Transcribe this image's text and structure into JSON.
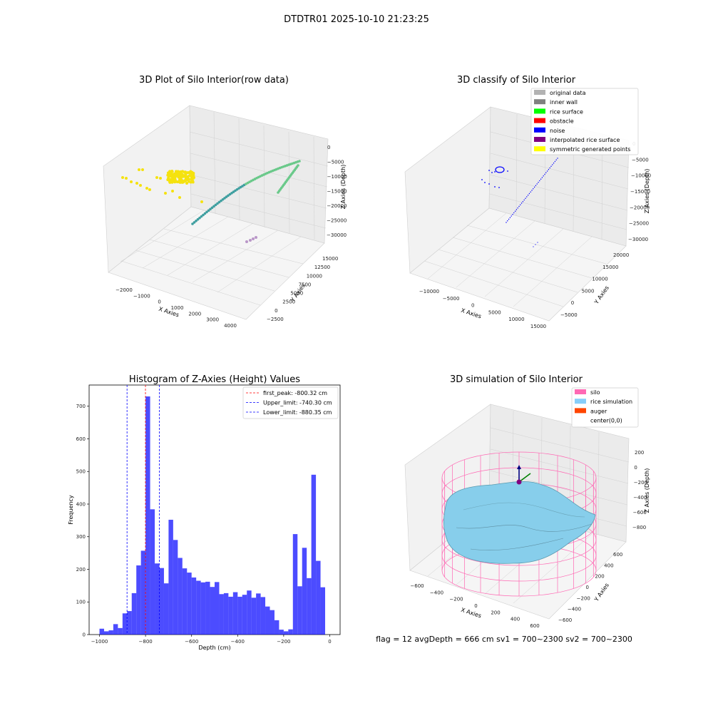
{
  "suptitle": "DTDTR01 2025-10-10 21:23:25",
  "panel1": {
    "title": "3D Plot of Silo Interior(row data)",
    "xlabel": "X Axies",
    "ylabel": "Y Axies",
    "zlabel": "Z Axies (Depth)",
    "xticks": [
      "−2000",
      "−1000",
      "0",
      "1000",
      "2000",
      "3000",
      "4000"
    ],
    "yticks": [
      "−2500",
      "0",
      "2500",
      "5000",
      "7500",
      "10000",
      "12500",
      "15000"
    ],
    "zticks": [
      "0",
      "−5000",
      "−10000",
      "−15000",
      "−20000",
      "−25000",
      "−30000"
    ],
    "colors": {
      "yellow": "#f5e20f",
      "green": "#6ac98a",
      "teal": "#3f9fa0",
      "purple": "#b996c8"
    }
  },
  "panel2": {
    "title": "3D classify of Silo Interior",
    "xlabel": "X Axies",
    "ylabel": "Y Axies",
    "zlabel": "Z Axies (Depth)",
    "xticks": [
      "−10000",
      "−5000",
      "0",
      "5000",
      "10000",
      "15000"
    ],
    "yticks": [
      "−5000",
      "0",
      "5000",
      "10000",
      "15000",
      "20000"
    ],
    "zticks": [
      "0",
      "−5000",
      "−10000",
      "−15000",
      "−20000",
      "−25000",
      "−30000"
    ],
    "legend": [
      {
        "label": "original data",
        "color": "#b3b3b3"
      },
      {
        "label": "inner wall",
        "color": "#808080"
      },
      {
        "label": "rice surface",
        "color": "#00ff00"
      },
      {
        "label": "obstacle",
        "color": "#ff0000"
      },
      {
        "label": "noise",
        "color": "#0000ff"
      },
      {
        "label": "interpolated rice surface",
        "color": "#800080"
      },
      {
        "label": "symmetric generated points",
        "color": "#ffff00"
      }
    ]
  },
  "panel3": {
    "title": "Histogram of Z-Axies (Height) Values",
    "legend": [
      {
        "label": "first_peak: -800.32 cm",
        "color": "#ff0000"
      },
      {
        "label": "Upper_limit: -740.30 cm",
        "color": "#0000ff"
      },
      {
        "label": "Lower_limit: -880.35 cm",
        "color": "#0000ff"
      }
    ]
  },
  "panel4": {
    "title": "3D simulation of Silo Interior",
    "xlabel": "X Axies",
    "ylabel": "Y Axies",
    "zlabel": "Z Axies (Depth)",
    "xticks": [
      "−600",
      "−400",
      "−200",
      "0",
      "200",
      "400",
      "600"
    ],
    "yticks": [
      "−600",
      "−400",
      "−200",
      "0",
      "200",
      "400",
      "600"
    ],
    "zticks": [
      "200",
      "0",
      "−200",
      "−400",
      "−600",
      "−800"
    ],
    "legend": [
      {
        "label": "silo",
        "color": "#ff69b4"
      },
      {
        "label": "rice simulation",
        "color": "#87cefa"
      },
      {
        "label": "auger",
        "color": "#ff4500"
      },
      {
        "label": "center(0,0)",
        "color": ""
      }
    ]
  },
  "footer": "flag = 12   avgDepth = 666 cm  sv1 = 700~2300  sv2 = 700~2300",
  "chart_data": {
    "type": "bar",
    "title": "Histogram of Z-Axies (Height) Values",
    "xlabel": "Depth (cm)",
    "ylabel": "Frequency",
    "xlim": [
      -1045,
      45
    ],
    "ylim": [
      0,
      765
    ],
    "xticks": [
      -1000,
      -800,
      -600,
      -400,
      -200,
      0
    ],
    "xtick_labels": [
      "−1000",
      "−800",
      "−600",
      "−400",
      "−200",
      "0"
    ],
    "yticks": [
      0,
      100,
      200,
      300,
      400,
      500,
      600,
      700
    ],
    "bar_color": "#0000ff",
    "bin_width": 20,
    "bins_start": [
      -1000,
      -980,
      -960,
      -940,
      -920,
      -900,
      -880,
      -860,
      -840,
      -820,
      -800,
      -780,
      -760,
      -740,
      -720,
      -700,
      -680,
      -660,
      -640,
      -620,
      -600,
      -580,
      -560,
      -540,
      -520,
      -500,
      -480,
      -460,
      -440,
      -420,
      -400,
      -380,
      -360,
      -340,
      -320,
      -300,
      -280,
      -260,
      -240,
      -220,
      -200,
      -180,
      -160,
      -140,
      -120,
      -100,
      -80,
      -60,
      -40,
      -20
    ],
    "values": [
      18,
      10,
      13,
      32,
      20,
      65,
      72,
      127,
      212,
      257,
      730,
      384,
      218,
      204,
      157,
      352,
      290,
      235,
      203,
      190,
      175,
      165,
      160,
      162,
      146,
      161,
      124,
      127,
      116,
      130,
      116,
      122,
      135,
      113,
      126,
      115,
      86,
      75,
      44,
      15,
      10,
      16,
      308,
      148,
      266,
      173,
      490,
      226,
      145,
      0
    ],
    "vlines": [
      {
        "name": "first_peak",
        "x": -800.32,
        "color": "#ff0000"
      },
      {
        "name": "Upper_limit",
        "x": -740.3,
        "color": "#0000ff"
      },
      {
        "name": "Lower_limit",
        "x": -880.35,
        "color": "#0000ff"
      }
    ],
    "legend_position": "upper right",
    "grid": false
  }
}
